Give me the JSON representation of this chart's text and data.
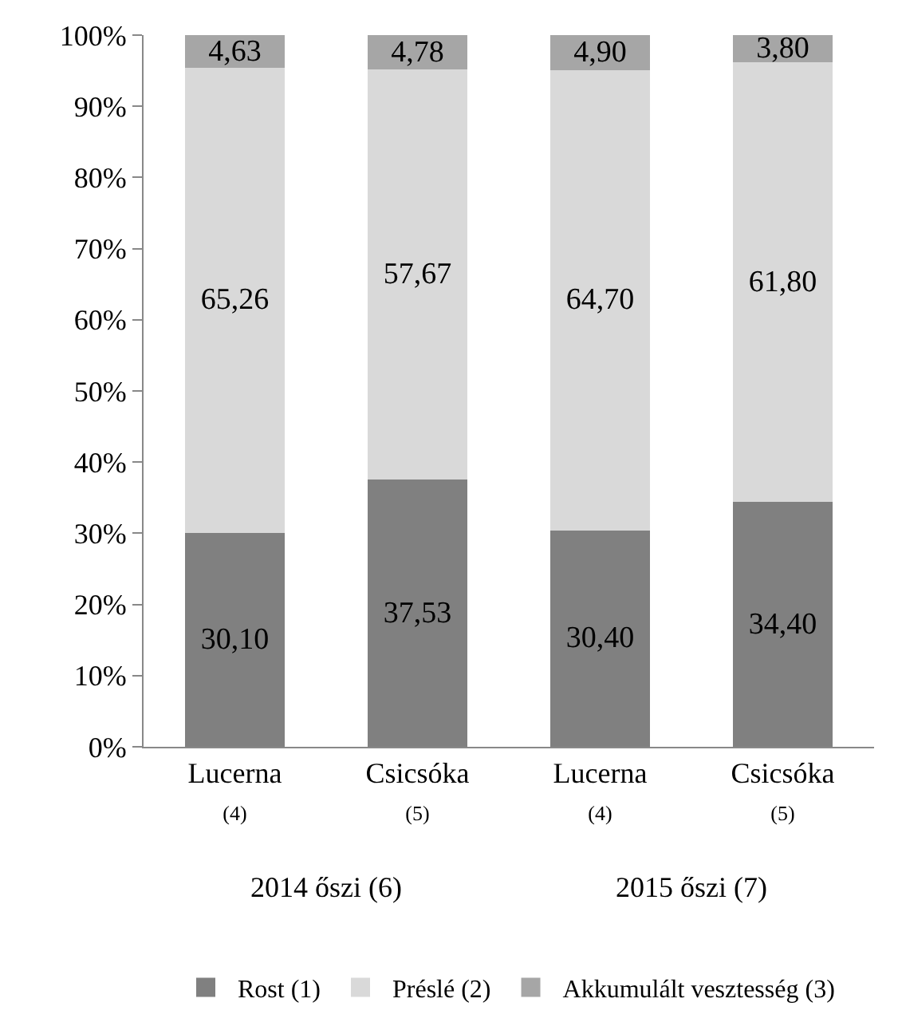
{
  "chart_data": {
    "type": "bar",
    "stacked": true,
    "categories": [
      "Lucerna\n(4)",
      "Csicsóka\n(5)",
      "Lucerna\n(4)",
      "Csicsóka\n(5)"
    ],
    "series": [
      {
        "name": "Rost (1)",
        "color": "#808080",
        "values": [
          30.1,
          37.53,
          30.4,
          34.4
        ],
        "value_labels": [
          "30,10",
          "37,53",
          "30,40",
          "34,40"
        ]
      },
      {
        "name": "Préslé (2)",
        "color": "#d9d9d9",
        "values": [
          65.26,
          57.67,
          64.7,
          61.8
        ],
        "value_labels": [
          "65,26",
          "57,67",
          "64,70",
          "61,80"
        ]
      },
      {
        "name": "Akkumulált vesztesség (3)",
        "color": "#a6a6a6",
        "values": [
          4.63,
          4.78,
          4.9,
          3.8
        ],
        "value_labels": [
          "4,63",
          "4,78",
          "4,90",
          "3,80"
        ]
      }
    ],
    "ylim": [
      0,
      100
    ],
    "yticks": [
      {
        "value": 0,
        "label": "0%"
      },
      {
        "value": 10,
        "label": "10%"
      },
      {
        "value": 20,
        "label": "20%"
      },
      {
        "value": 30,
        "label": "30%"
      },
      {
        "value": 40,
        "label": "40%"
      },
      {
        "value": 50,
        "label": "50%"
      },
      {
        "value": 60,
        "label": "60%"
      },
      {
        "value": 70,
        "label": "70%"
      },
      {
        "value": 80,
        "label": "80%"
      },
      {
        "value": 90,
        "label": "90%"
      },
      {
        "value": 100,
        "label": "100%"
      }
    ],
    "annotations": [
      "2014 őszi (6)",
      "2015 őszi (7)"
    ],
    "legend": "bottom"
  }
}
